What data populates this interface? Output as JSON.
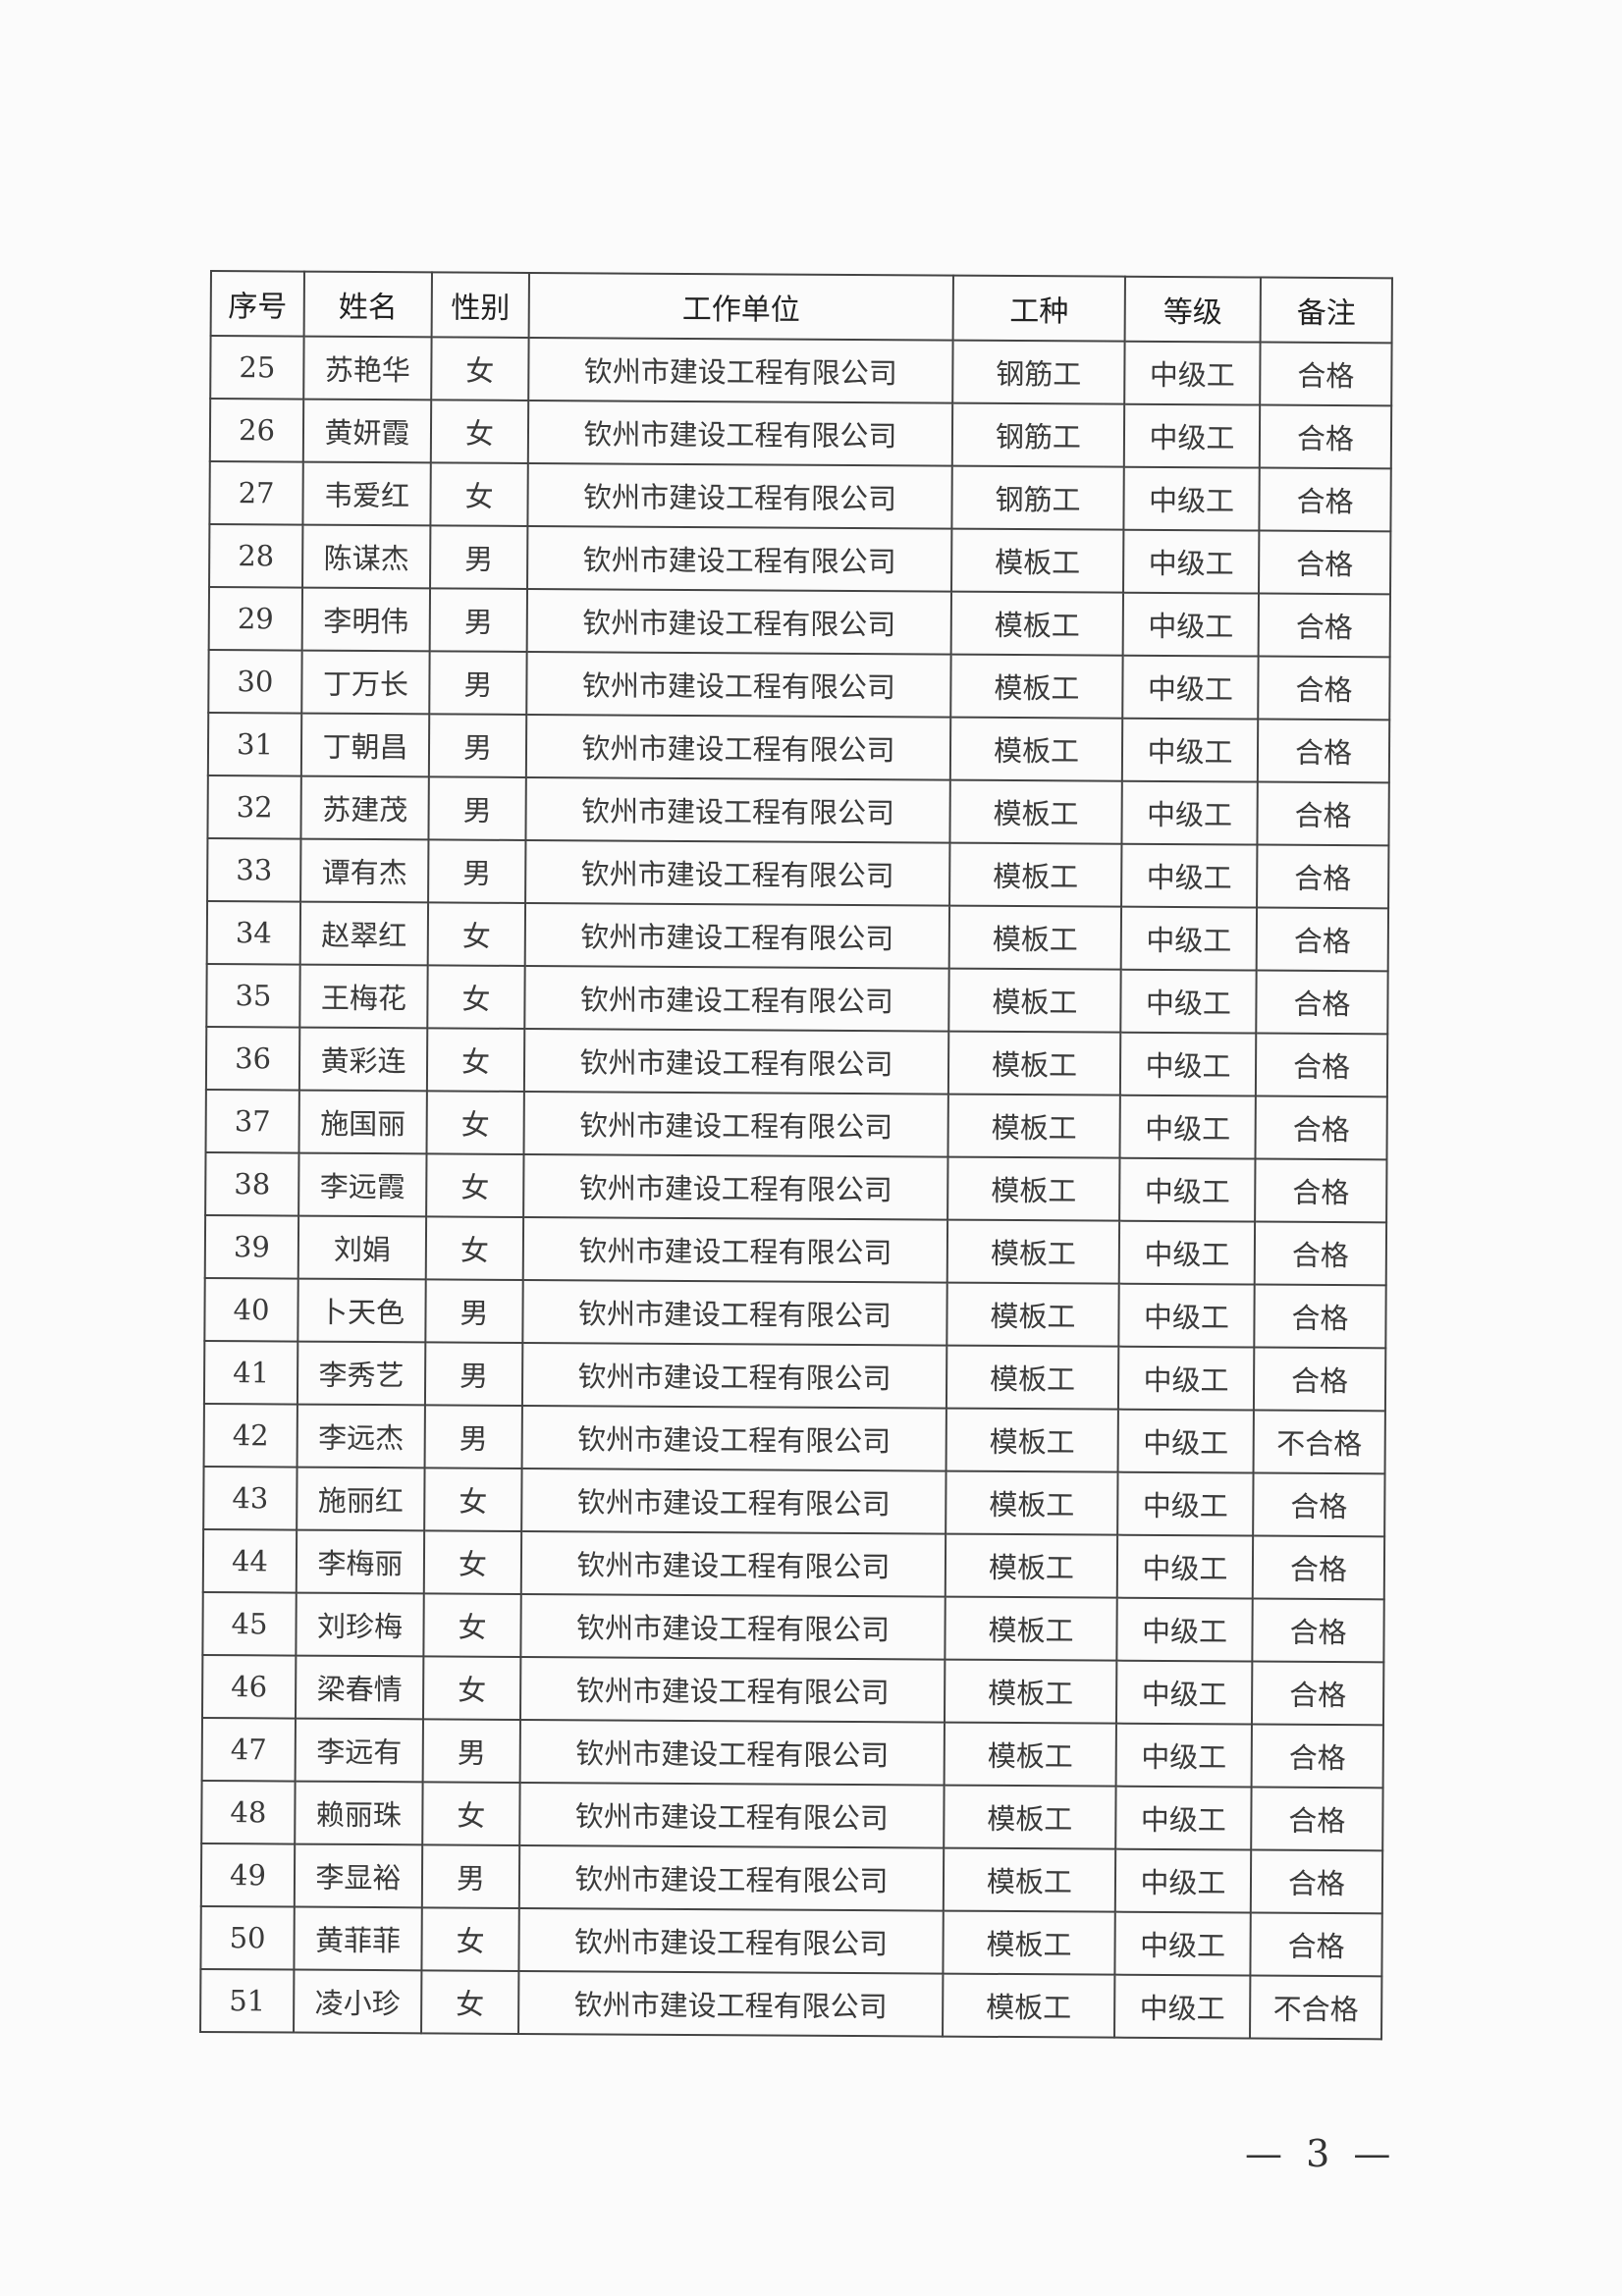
{
  "table": {
    "headers": [
      "序号",
      "姓名",
      "性别",
      "工作单位",
      "工种",
      "等级",
      "备注"
    ],
    "rows": [
      [
        "25",
        "苏艳华",
        "女",
        "钦州市建设工程有限公司",
        "钢筋工",
        "中级工",
        "合格"
      ],
      [
        "26",
        "黄妍霞",
        "女",
        "钦州市建设工程有限公司",
        "钢筋工",
        "中级工",
        "合格"
      ],
      [
        "27",
        "韦爱红",
        "女",
        "钦州市建设工程有限公司",
        "钢筋工",
        "中级工",
        "合格"
      ],
      [
        "28",
        "陈谋杰",
        "男",
        "钦州市建设工程有限公司",
        "模板工",
        "中级工",
        "合格"
      ],
      [
        "29",
        "李明伟",
        "男",
        "钦州市建设工程有限公司",
        "模板工",
        "中级工",
        "合格"
      ],
      [
        "30",
        "丁万长",
        "男",
        "钦州市建设工程有限公司",
        "模板工",
        "中级工",
        "合格"
      ],
      [
        "31",
        "丁朝昌",
        "男",
        "钦州市建设工程有限公司",
        "模板工",
        "中级工",
        "合格"
      ],
      [
        "32",
        "苏建茂",
        "男",
        "钦州市建设工程有限公司",
        "模板工",
        "中级工",
        "合格"
      ],
      [
        "33",
        "谭有杰",
        "男",
        "钦州市建设工程有限公司",
        "模板工",
        "中级工",
        "合格"
      ],
      [
        "34",
        "赵翠红",
        "女",
        "钦州市建设工程有限公司",
        "模板工",
        "中级工",
        "合格"
      ],
      [
        "35",
        "王梅花",
        "女",
        "钦州市建设工程有限公司",
        "模板工",
        "中级工",
        "合格"
      ],
      [
        "36",
        "黄彩连",
        "女",
        "钦州市建设工程有限公司",
        "模板工",
        "中级工",
        "合格"
      ],
      [
        "37",
        "施国丽",
        "女",
        "钦州市建设工程有限公司",
        "模板工",
        "中级工",
        "合格"
      ],
      [
        "38",
        "李远霞",
        "女",
        "钦州市建设工程有限公司",
        "模板工",
        "中级工",
        "合格"
      ],
      [
        "39",
        "刘娟",
        "女",
        "钦州市建设工程有限公司",
        "模板工",
        "中级工",
        "合格"
      ],
      [
        "40",
        "卜天色",
        "男",
        "钦州市建设工程有限公司",
        "模板工",
        "中级工",
        "合格"
      ],
      [
        "41",
        "李秀艺",
        "男",
        "钦州市建设工程有限公司",
        "模板工",
        "中级工",
        "合格"
      ],
      [
        "42",
        "李远杰",
        "男",
        "钦州市建设工程有限公司",
        "模板工",
        "中级工",
        "不合格"
      ],
      [
        "43",
        "施丽红",
        "女",
        "钦州市建设工程有限公司",
        "模板工",
        "中级工",
        "合格"
      ],
      [
        "44",
        "李梅丽",
        "女",
        "钦州市建设工程有限公司",
        "模板工",
        "中级工",
        "合格"
      ],
      [
        "45",
        "刘珍梅",
        "女",
        "钦州市建设工程有限公司",
        "模板工",
        "中级工",
        "合格"
      ],
      [
        "46",
        "梁春情",
        "女",
        "钦州市建设工程有限公司",
        "模板工",
        "中级工",
        "合格"
      ],
      [
        "47",
        "李远有",
        "男",
        "钦州市建设工程有限公司",
        "模板工",
        "中级工",
        "合格"
      ],
      [
        "48",
        "赖丽珠",
        "女",
        "钦州市建设工程有限公司",
        "模板工",
        "中级工",
        "合格"
      ],
      [
        "49",
        "李显裕",
        "男",
        "钦州市建设工程有限公司",
        "模板工",
        "中级工",
        "合格"
      ],
      [
        "50",
        "黄菲菲",
        "女",
        "钦州市建设工程有限公司",
        "模板工",
        "中级工",
        "合格"
      ],
      [
        "51",
        "凌小珍",
        "女",
        "钦州市建设工程有限公司",
        "模板工",
        "中级工",
        "不合格"
      ]
    ]
  },
  "page_number": "— 3 —"
}
